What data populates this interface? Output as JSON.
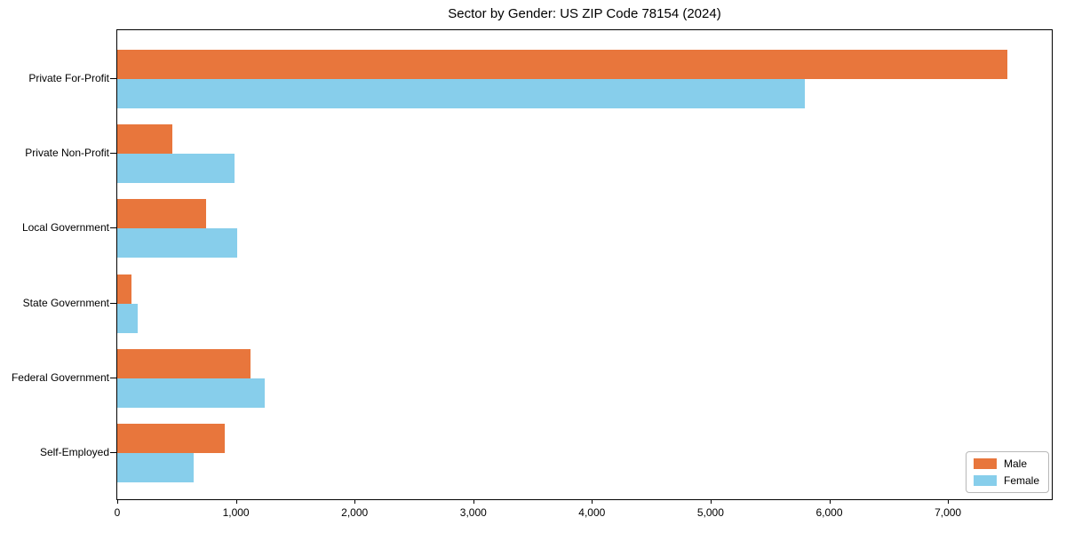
{
  "chart_data": {
    "type": "bar",
    "orientation": "horizontal",
    "title": "Sector by Gender: US ZIP Code 78154 (2024)",
    "categories": [
      "Private For-Profit",
      "Private Non-Profit",
      "Local Government",
      "State Government",
      "Federal Government",
      "Self-Employed"
    ],
    "series": [
      {
        "name": "Male",
        "color": "#E8763C",
        "values": [
          7500,
          465,
          750,
          120,
          1120,
          905
        ]
      },
      {
        "name": "Female",
        "color": "#87CEEB",
        "values": [
          5790,
          990,
          1010,
          175,
          1240,
          640
        ]
      }
    ],
    "xlabel": "",
    "ylabel": "",
    "xlim": [
      0,
      7875
    ],
    "xticks": [
      0,
      1000,
      2000,
      3000,
      4000,
      5000,
      6000,
      7000
    ],
    "xtick_labels": [
      "0",
      "1,000",
      "2,000",
      "3,000",
      "4,000",
      "5,000",
      "6,000",
      "7,000"
    ],
    "grid": false,
    "axes_box": true,
    "legend_position": "lower-right"
  }
}
